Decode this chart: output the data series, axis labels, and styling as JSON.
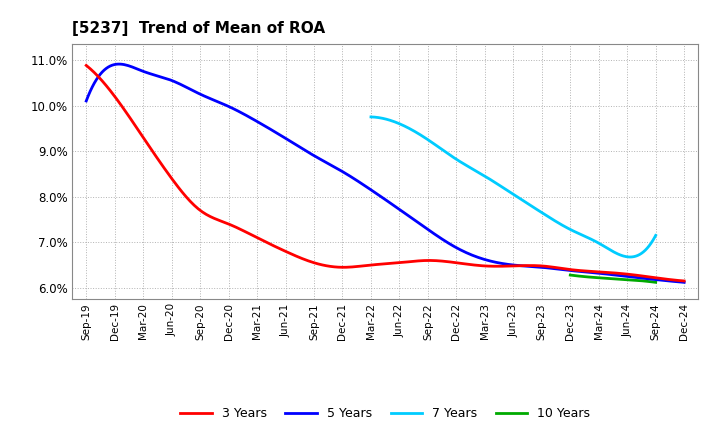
{
  "title": "[5237]  Trend of Mean of ROA",
  "background_color": "#ffffff",
  "plot_bg_color": "#ffffff",
  "grid_color": "#aaaaaa",
  "series": {
    "3 Years": {
      "color": "#ff0000",
      "x": [
        "Sep-19",
        "Dec-19",
        "Mar-20",
        "Jun-20",
        "Sep-20",
        "Dec-20",
        "Mar-21",
        "Jun-21",
        "Sep-21",
        "Dec-21",
        "Mar-22",
        "Jun-22",
        "Sep-22",
        "Dec-22",
        "Mar-23",
        "Jun-23",
        "Sep-23",
        "Dec-23",
        "Mar-24",
        "Jun-24",
        "Sep-24",
        "Dec-24"
      ],
      "y": [
        0.1088,
        0.102,
        0.093,
        0.084,
        0.077,
        0.074,
        0.071,
        0.068,
        0.0655,
        0.0645,
        0.065,
        0.0655,
        0.066,
        0.0655,
        0.0648,
        0.0648,
        0.0648,
        0.064,
        0.0635,
        0.063,
        0.0622,
        0.0615
      ]
    },
    "5 Years": {
      "color": "#0000ff",
      "x": [
        "Sep-19",
        "Dec-19",
        "Mar-20",
        "Jun-20",
        "Sep-20",
        "Dec-20",
        "Mar-21",
        "Jun-21",
        "Sep-21",
        "Dec-21",
        "Mar-22",
        "Jun-22",
        "Sep-22",
        "Dec-22",
        "Mar-23",
        "Jun-23",
        "Sep-23",
        "Dec-23",
        "Mar-24",
        "Jun-24",
        "Sep-24",
        "Dec-24"
      ],
      "y": [
        0.101,
        0.109,
        0.1075,
        0.1055,
        0.1025,
        0.0998,
        0.0965,
        0.0928,
        0.089,
        0.0855,
        0.0815,
        0.0772,
        0.0728,
        0.0688,
        0.0662,
        0.065,
        0.0645,
        0.0638,
        0.0632,
        0.0625,
        0.0618,
        0.0612
      ]
    },
    "7 Years": {
      "color": "#00ccff",
      "x": [
        "Mar-22",
        "Jun-22",
        "Sep-22",
        "Dec-22",
        "Mar-23",
        "Jun-23",
        "Sep-23",
        "Dec-23",
        "Mar-24",
        "Jun-24",
        "Sep-24"
      ],
      "y": [
        0.0975,
        0.096,
        0.0925,
        0.0882,
        0.0845,
        0.0805,
        0.0765,
        0.0728,
        0.0698,
        0.0668,
        0.0715
      ]
    },
    "10 Years": {
      "color": "#00aa00",
      "x": [
        "Dec-23",
        "Mar-24",
        "Jun-24",
        "Sep-24"
      ],
      "y": [
        0.0628,
        0.0622,
        0.0618,
        0.0612
      ]
    }
  },
  "x_labels": [
    "Sep-19",
    "Dec-19",
    "Mar-20",
    "Jun-20",
    "Sep-20",
    "Dec-20",
    "Mar-21",
    "Jun-21",
    "Sep-21",
    "Dec-21",
    "Mar-22",
    "Jun-22",
    "Sep-22",
    "Dec-22",
    "Mar-23",
    "Jun-23",
    "Sep-23",
    "Dec-23",
    "Mar-24",
    "Jun-24",
    "Sep-24",
    "Dec-24"
  ],
  "ylim": [
    0.0575,
    0.1135
  ],
  "yticks": [
    0.06,
    0.07,
    0.08,
    0.09,
    0.1,
    0.11
  ],
  "ytick_labels": [
    "6.0%",
    "7.0%",
    "8.0%",
    "9.0%",
    "10.0%",
    "11.0%"
  ],
  "legend_labels": [
    "3 Years",
    "5 Years",
    "7 Years",
    "10 Years"
  ],
  "legend_colors": [
    "#ff0000",
    "#0000ff",
    "#00ccff",
    "#00aa00"
  ]
}
